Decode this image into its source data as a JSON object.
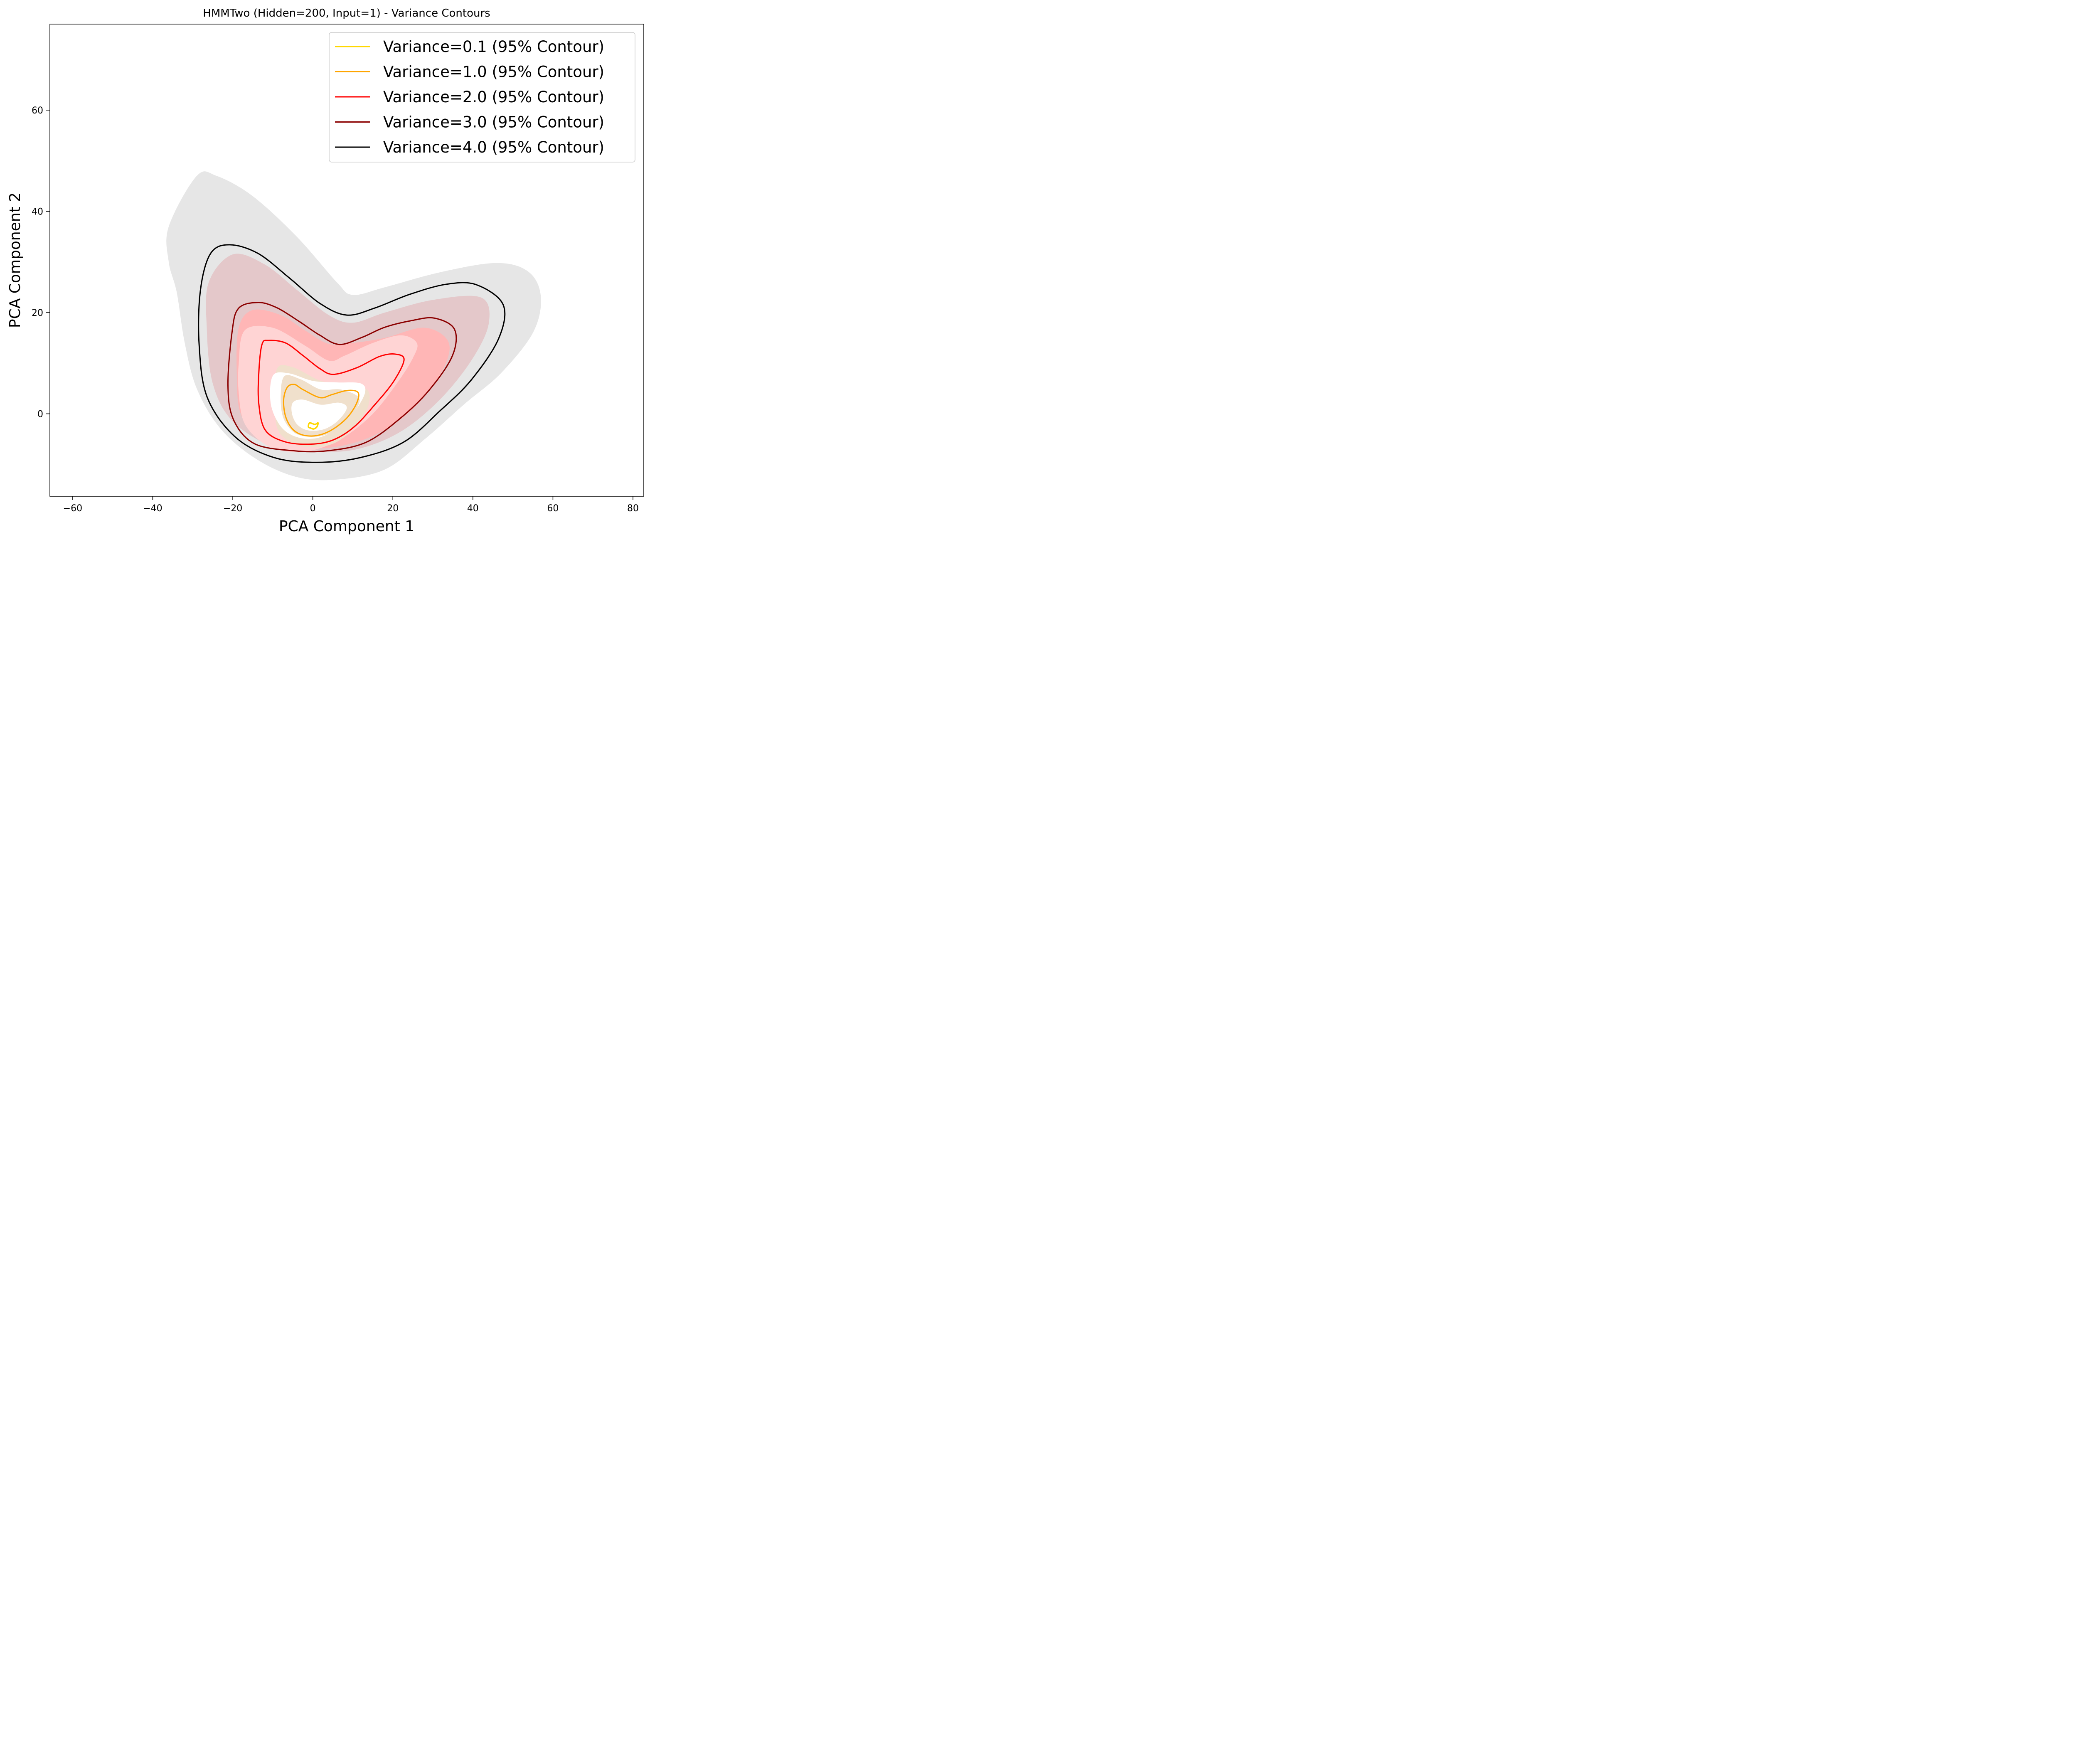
{
  "chart_data": {
    "type": "contour",
    "title": "HMMTwo (Hidden=200, Input=1) - Variance Contours",
    "xlabel": "PCA Component 1",
    "ylabel": "PCA Component 2",
    "xlim": [
      -65.7,
      82.7
    ],
    "ylim": [
      -16.3,
      77.0
    ],
    "xticks": [
      -60,
      -40,
      -20,
      0,
      20,
      40,
      60,
      80
    ],
    "yticks": [
      0,
      20,
      40,
      60
    ],
    "xtick_labels": [
      "−60",
      "−40",
      "−20",
      "0",
      "20",
      "40",
      "60",
      "80"
    ],
    "ytick_labels": [
      "0",
      "20",
      "40",
      "60"
    ],
    "grid": false,
    "legend_position": "top-right",
    "series": [
      {
        "name": "Variance=0.1 (95% Contour)",
        "color": "#FFD700",
        "fill": "#FFF3B0",
        "contour": [
          [
            -1.1,
            -2.6
          ],
          [
            -0.8,
            -1.8
          ],
          [
            0.5,
            -2.1
          ],
          [
            1.3,
            -1.8
          ],
          [
            1.0,
            -2.6
          ],
          [
            0.2,
            -3.0
          ],
          [
            -0.6,
            -2.8
          ],
          [
            -1.1,
            -2.6
          ]
        ]
      },
      {
        "name": "Variance=1.0 (95% Contour)",
        "color": "#FFA500",
        "fill": "#F0E0CC",
        "contour": [
          [
            -4.6,
            5.8
          ],
          [
            -2.5,
            4.8
          ],
          [
            1.8,
            3.2
          ],
          [
            4.8,
            3.8
          ],
          [
            8.6,
            4.6
          ],
          [
            11.3,
            4.2
          ],
          [
            10.9,
            2.0
          ],
          [
            8.3,
            -1.0
          ],
          [
            4.0,
            -3.5
          ],
          [
            -0.3,
            -4.4
          ],
          [
            -4.2,
            -3.6
          ],
          [
            -6.6,
            -1.0
          ],
          [
            -7.3,
            2.6
          ],
          [
            -6.4,
            5.2
          ],
          [
            -4.6,
            5.8
          ]
        ],
        "fill_region": [
          [
            -9,
            8.8
          ],
          [
            -5,
            9.2
          ],
          [
            2,
            6.5
          ],
          [
            8,
            5.8
          ],
          [
            13.5,
            4.8
          ],
          [
            14,
            2
          ],
          [
            12,
            -1
          ],
          [
            8,
            -4.5
          ],
          [
            4,
            -6.2
          ],
          [
            -1,
            -6.6
          ],
          [
            -5,
            -5.8
          ],
          [
            -8.5,
            -3.5
          ],
          [
            -9.5,
            1
          ],
          [
            -9,
            8.8
          ]
        ]
      },
      {
        "name": "Variance=2.0 (95% Contour)",
        "color": "#FF0000",
        "fill": "#FFD4D4",
        "contour": [
          [
            -11.0,
            14.5
          ],
          [
            -6.8,
            14.0
          ],
          [
            -2.6,
            11.6
          ],
          [
            1.8,
            8.9
          ],
          [
            5.2,
            7.8
          ],
          [
            11.0,
            9.1
          ],
          [
            16.6,
            11.3
          ],
          [
            20.5,
            11.8
          ],
          [
            22.8,
            10.7
          ],
          [
            20.2,
            6.4
          ],
          [
            15.5,
            1.8
          ],
          [
            10.3,
            -2.6
          ],
          [
            5.0,
            -5.2
          ],
          [
            -0.6,
            -6.0
          ],
          [
            -7.1,
            -5.5
          ],
          [
            -11.9,
            -3.2
          ],
          [
            -13.5,
            2.0
          ],
          [
            -13.5,
            8.0
          ],
          [
            -12.7,
            13.7
          ],
          [
            -11.0,
            14.5
          ]
        ],
        "fill_region": [
          [
            -17,
            16.5
          ],
          [
            -10,
            17
          ],
          [
            -2,
            13.5
          ],
          [
            4,
            10.5
          ],
          [
            8,
            11.5
          ],
          [
            15,
            14
          ],
          [
            22,
            15.5
          ],
          [
            26,
            14
          ],
          [
            25,
            11
          ],
          [
            21,
            6
          ],
          [
            15,
            0
          ],
          [
            8,
            -4.5
          ],
          [
            1,
            -7
          ],
          [
            -6,
            -7.5
          ],
          [
            -12,
            -6
          ],
          [
            -17,
            -2
          ],
          [
            -18.5,
            4
          ],
          [
            -18.5,
            10
          ],
          [
            -17,
            16.5
          ]
        ]
      },
      {
        "name": "Variance=3.0 (95% Contour)",
        "color": "#8B0000",
        "fill": "#FFB6B6",
        "contour": [
          [
            -13.8,
            22.0
          ],
          [
            -9.1,
            21.0
          ],
          [
            -3.5,
            18.3
          ],
          [
            1.6,
            15.6
          ],
          [
            6.6,
            13.7
          ],
          [
            12.3,
            15.1
          ],
          [
            18.0,
            17.1
          ],
          [
            24.6,
            18.4
          ],
          [
            30.4,
            18.9
          ],
          [
            35.4,
            16.7
          ],
          [
            34.9,
            11.5
          ],
          [
            29.1,
            4.7
          ],
          [
            22.0,
            -0.8
          ],
          [
            13.4,
            -5.6
          ],
          [
            3.8,
            -7.3
          ],
          [
            -4.9,
            -7.3
          ],
          [
            -14.6,
            -5.9
          ],
          [
            -19.8,
            -1.2
          ],
          [
            -21.2,
            5.6
          ],
          [
            -20.2,
            16.0
          ],
          [
            -18.6,
            20.8
          ],
          [
            -13.8,
            22.0
          ]
        ],
        "fill_region": [
          [
            -15,
            20.5
          ],
          [
            -8,
            19.5
          ],
          [
            -2,
            16.5
          ],
          [
            4,
            13.8
          ],
          [
            10,
            14
          ],
          [
            18,
            15
          ],
          [
            28,
            17
          ],
          [
            34,
            14
          ],
          [
            32,
            8
          ],
          [
            25,
            1
          ],
          [
            16,
            -4
          ],
          [
            6,
            -6.5
          ],
          [
            -4,
            -6.5
          ],
          [
            -13,
            -4.5
          ],
          [
            -18,
            0
          ],
          [
            -19,
            8
          ],
          [
            -18.5,
            17
          ],
          [
            -15,
            20.5
          ]
        ]
      },
      {
        "name": "Variance=4.0 (95% Contour)",
        "color": "#000000",
        "fill": "#E4C8CA",
        "contour": [
          [
            -20.9,
            33.4
          ],
          [
            -13.7,
            31.7
          ],
          [
            -5.8,
            26.8
          ],
          [
            1.8,
            21.8
          ],
          [
            8.5,
            19.5
          ],
          [
            15.5,
            20.9
          ],
          [
            24.2,
            23.6
          ],
          [
            33.4,
            25.6
          ],
          [
            40.9,
            25.5
          ],
          [
            47.6,
            21.5
          ],
          [
            46.4,
            14.8
          ],
          [
            39.6,
            6.7
          ],
          [
            31.8,
            0.6
          ],
          [
            22.7,
            -5.6
          ],
          [
            11.6,
            -8.7
          ],
          [
            0.6,
            -9.6
          ],
          [
            -9.9,
            -8.6
          ],
          [
            -19.5,
            -4.5
          ],
          [
            -26.4,
            3.3
          ],
          [
            -28.4,
            13.6
          ],
          [
            -28.1,
            24.3
          ],
          [
            -25.6,
            31.6
          ],
          [
            -20.9,
            33.4
          ]
        ],
        "fill_region": [
          [
            -20,
            31.5
          ],
          [
            -12,
            29.5
          ],
          [
            -4,
            24.5
          ],
          [
            4,
            19.5
          ],
          [
            10,
            18
          ],
          [
            18,
            20
          ],
          [
            30,
            22.5
          ],
          [
            42,
            23
          ],
          [
            44,
            18
          ],
          [
            40,
            11
          ],
          [
            32,
            3
          ],
          [
            22,
            -3.5
          ],
          [
            11,
            -7
          ],
          [
            0,
            -7.5
          ],
          [
            -10,
            -6.5
          ],
          [
            -20,
            -1.5
          ],
          [
            -25,
            6
          ],
          [
            -26.5,
            17
          ],
          [
            -26,
            26
          ],
          [
            -20,
            31.5
          ]
        ]
      }
    ],
    "background_density": {
      "color": "#E6E6E6",
      "region": [
        [
          -36,
          37
        ],
        [
          -29,
          47
        ],
        [
          -24,
          47
        ],
        [
          -15,
          43
        ],
        [
          -4,
          35
        ],
        [
          6,
          26
        ],
        [
          10,
          23.5
        ],
        [
          18,
          25
        ],
        [
          32,
          28
        ],
        [
          46,
          29.8
        ],
        [
          54,
          28
        ],
        [
          57,
          23
        ],
        [
          55,
          16
        ],
        [
          47,
          8
        ],
        [
          38,
          2
        ],
        [
          28,
          -5
        ],
        [
          18,
          -11
        ],
        [
          6,
          -13
        ],
        [
          -4,
          -12.5
        ],
        [
          -14,
          -9
        ],
        [
          -23,
          -3
        ],
        [
          -29,
          5
        ],
        [
          -32,
          14
        ],
        [
          -34,
          24
        ],
        [
          -36,
          30
        ],
        [
          -36,
          37
        ]
      ]
    }
  }
}
